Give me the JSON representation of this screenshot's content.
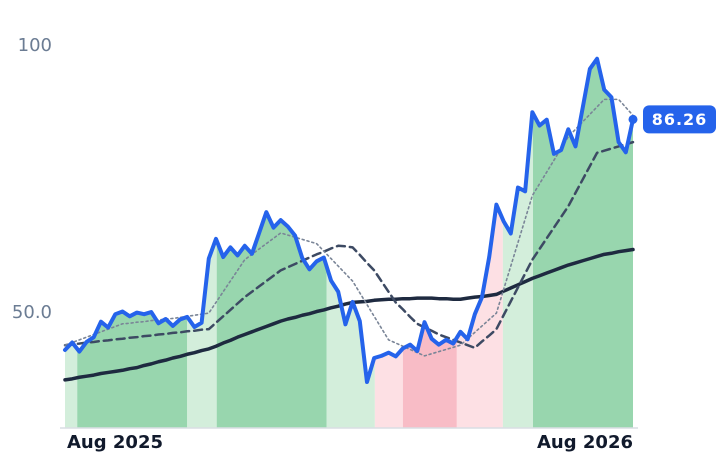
{
  "chart_data": {
    "type": "line",
    "x": [
      0,
      1,
      2,
      3,
      4,
      5,
      6,
      7,
      8,
      9,
      10,
      11,
      12,
      13,
      14,
      15,
      16,
      17,
      18,
      19,
      20,
      21,
      22,
      23,
      24,
      25,
      26,
      27,
      28,
      29,
      30,
      31,
      32,
      33,
      34,
      35,
      36,
      37,
      38,
      39,
      40,
      41,
      42,
      43,
      44,
      45,
      46,
      47,
      48,
      49,
      50,
      51,
      52,
      53,
      54,
      55,
      56,
      57,
      58,
      59,
      60,
      61,
      62,
      63,
      64,
      65,
      66,
      67,
      68,
      69,
      70,
      71,
      72,
      73,
      74,
      75,
      76,
      77,
      78,
      79
    ],
    "xlim": [
      0,
      79
    ],
    "xticks": [
      {
        "value": 0,
        "label": "Aug 2025"
      },
      {
        "value": 79,
        "label": "Aug 2026"
      }
    ],
    "ylim": [
      28.5,
      108.6
    ],
    "yticks": [
      {
        "value": 50,
        "label": "50.0"
      },
      100
    ],
    "grid": false,
    "show_last_value": true,
    "area_under": 0,
    "bands": [
      {
        "from": 0,
        "to": 1.7,
        "color": "#d3eedb"
      },
      {
        "from": 1.7,
        "to": 17,
        "color": "#98d6ae"
      },
      {
        "from": 17,
        "to": 21.1,
        "color": "#d3eedb"
      },
      {
        "from": 21.1,
        "to": 36.4,
        "color": "#98d6ae"
      },
      {
        "from": 36.4,
        "to": 43.1,
        "color": "#d3eedb"
      },
      {
        "from": 43.1,
        "to": 47,
        "color": "#fde0e4"
      },
      {
        "from": 47,
        "to": 54.5,
        "color": "#f8bcc6"
      },
      {
        "from": 54.5,
        "to": 60.9,
        "color": "#fde0e4"
      },
      {
        "from": 60.9,
        "to": 65.1,
        "color": "#d3eedb"
      },
      {
        "from": 65.1,
        "to": 79,
        "color": "#98d6ae"
      }
    ],
    "series": [
      {
        "color": "#2563eb",
        "width": 4,
        "dash": "none",
        "values": [
          43.1,
          44.5,
          42.8,
          44.6,
          45.5,
          48.4,
          47.3,
          49.8,
          50.3,
          49.4,
          50.1,
          49.8,
          50.2,
          48.1,
          48.9,
          47.6,
          48.8,
          49.3,
          47.4,
          48.2,
          60.2,
          63.9,
          60.5,
          62.3,
          60.8,
          62.6,
          61.1,
          65.0,
          68.9,
          66.0,
          67.4,
          66.2,
          64.5,
          60.3,
          58.2,
          59.7,
          60.4,
          56.1,
          54.0,
          47.9,
          52.1,
          48.5,
          37.1,
          41.6,
          42.0,
          42.6,
          41.9,
          43.4,
          44.1,
          42.9,
          48.3,
          45.2,
          44.1,
          45.0,
          44.3,
          46.5,
          45.1,
          49.8,
          53.0,
          60.5,
          70.3,
          67.2,
          64.9,
          73.5,
          72.8,
          87.6,
          85.1,
          86.2,
          79.8,
          80.5,
          84.4,
          81.2,
          88.4,
          95.7,
          97.6,
          91.8,
          90.4,
          82.0,
          80.1,
          86.26
        ]
      },
      {
        "color": "#7a8597",
        "width": 1.6,
        "dash": "2,3",
        "values": [
          44.0,
          44.5,
          45.0,
          45.5,
          46.0,
          46.5,
          47.0,
          47.5,
          48.0,
          48.1,
          48.3,
          48.4,
          48.6,
          48.7,
          48.9,
          49.0,
          49.2,
          49.4,
          49.6,
          49.8,
          50.0,
          52.0,
          54.0,
          56.0,
          58.0,
          60.0,
          61.0,
          62.0,
          63.0,
          64.0,
          65.0,
          64.6,
          64.2,
          63.8,
          63.4,
          63.0,
          61.6,
          60.2,
          58.8,
          57.4,
          56.0,
          53.8,
          51.6,
          49.4,
          47.2,
          45.0,
          44.4,
          43.8,
          43.2,
          42.6,
          42.0,
          42.4,
          42.8,
          43.2,
          43.6,
          44.0,
          45.2,
          46.4,
          47.6,
          48.8,
          50.0,
          54.4,
          58.8,
          63.2,
          67.6,
          72.0,
          74.2,
          76.4,
          78.6,
          80.8,
          83.0,
          84.4,
          85.8,
          87.2,
          88.6,
          90.0,
          90.0,
          90.0,
          88.5,
          87.0
        ]
      },
      {
        "color": "#3d4a63",
        "width": 2.5,
        "dash": "8,5",
        "values": [
          44.0,
          44.2,
          44.3,
          44.5,
          44.6,
          44.8,
          44.9,
          45.1,
          45.2,
          45.4,
          45.5,
          45.7,
          45.8,
          46.0,
          46.1,
          46.3,
          46.4,
          46.6,
          46.7,
          46.9,
          47.0,
          48.2,
          49.4,
          50.6,
          51.8,
          53.0,
          54.0,
          55.0,
          56.0,
          57.0,
          58.0,
          58.6,
          59.2,
          59.8,
          60.4,
          61.0,
          61.5,
          62.1,
          62.6,
          62.5,
          62.3,
          60.9,
          59.4,
          58.0,
          56.0,
          54.0,
          52.0,
          50.7,
          49.3,
          48.0,
          47.3,
          46.7,
          46.0,
          45.5,
          45.0,
          44.5,
          44.0,
          43.5,
          44.7,
          45.8,
          47.0,
          49.6,
          52.2,
          54.8,
          57.4,
          60.0,
          62.0,
          64.0,
          66.0,
          68.0,
          70.0,
          72.5,
          75.0,
          77.5,
          80.0,
          80.4,
          80.8,
          81.2,
          81.6,
          82.0
        ]
      },
      {
        "color": "#1e2a40",
        "width": 3.5,
        "dash": "none",
        "values": [
          37.5,
          37.7,
          38.0,
          38.2,
          38.4,
          38.7,
          38.9,
          39.1,
          39.3,
          39.6,
          39.8,
          40.2,
          40.5,
          40.9,
          41.2,
          41.6,
          41.9,
          42.3,
          42.6,
          43.0,
          43.3,
          43.8,
          44.4,
          44.9,
          45.5,
          46.0,
          46.5,
          47.0,
          47.5,
          48.0,
          48.5,
          48.9,
          49.2,
          49.6,
          49.9,
          50.3,
          50.6,
          51.0,
          51.3,
          51.7,
          52.0,
          52.1,
          52.2,
          52.4,
          52.5,
          52.6,
          52.6,
          52.7,
          52.7,
          52.8,
          52.8,
          52.8,
          52.7,
          52.7,
          52.6,
          52.6,
          52.8,
          53.0,
          53.1,
          53.3,
          53.5,
          54.1,
          54.7,
          55.3,
          55.9,
          56.5,
          57.0,
          57.5,
          58.0,
          58.5,
          59.0,
          59.4,
          59.8,
          60.2,
          60.6,
          61.0,
          61.2,
          61.5,
          61.7,
          61.9
        ]
      }
    ]
  }
}
